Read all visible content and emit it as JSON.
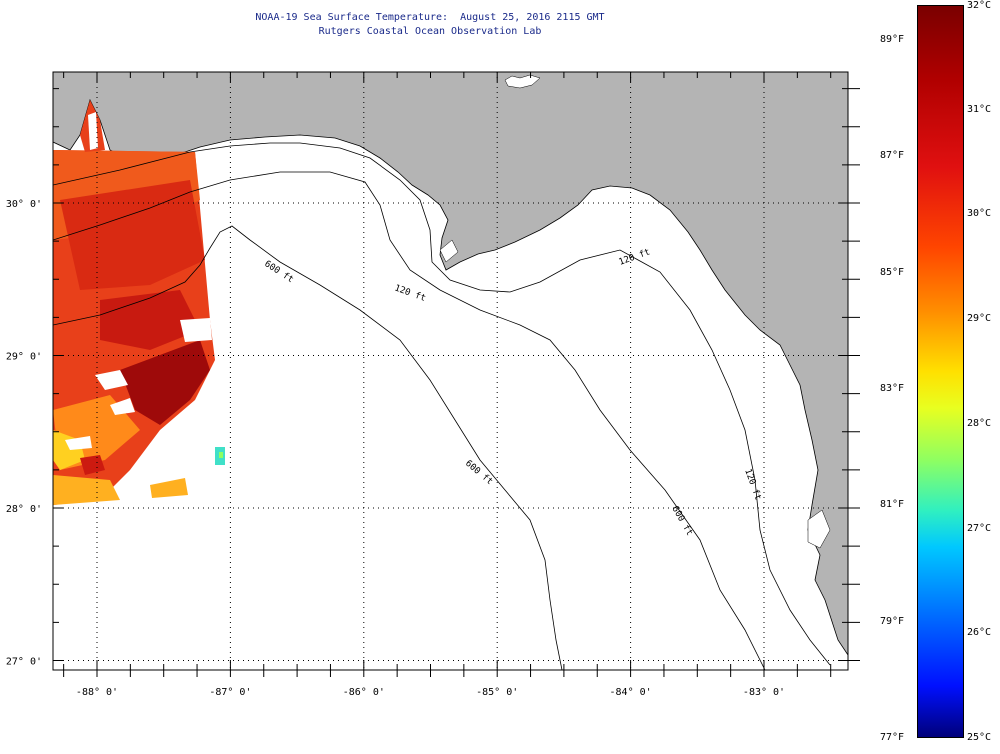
{
  "header": {
    "title": "NOAA-19 Sea Surface Temperature:  August 25, 2016 2115 GMT",
    "subtitle": "Rutgers Coastal Ocean Observation Lab"
  },
  "map": {
    "lon_labels": [
      "-88° 0'",
      "-87° 0'",
      "-86° 0'",
      "-85° 0'",
      "-84° 0'",
      "-83° 0'"
    ],
    "lat_labels": [
      "30° 0'",
      "29° 0'",
      "28° 0'",
      "27° 0'"
    ],
    "lon_values": [
      -88,
      -87,
      -86,
      -85,
      -84,
      -83
    ],
    "lat_values": [
      30,
      29,
      28,
      27
    ],
    "isobath_labels": [
      "600 ft",
      "120 ft",
      "600 ft",
      "120 ft",
      "600 ft",
      "120 ft"
    ],
    "colors": {
      "land": "#b4b4b4",
      "ocean": "#ffffff",
      "gridline": "#000000"
    }
  },
  "colorbar": {
    "celsius": [
      "32°C",
      "31°C",
      "30°C",
      "29°C",
      "28°C",
      "27°C",
      "26°C",
      "25°C"
    ],
    "fahrenheit": [
      "89°F",
      "87°F",
      "85°F",
      "83°F",
      "81°F",
      "79°F",
      "77°F"
    ],
    "range_celsius": [
      25,
      32
    ],
    "range_fahrenheit": [
      77,
      89.6
    ]
  }
}
